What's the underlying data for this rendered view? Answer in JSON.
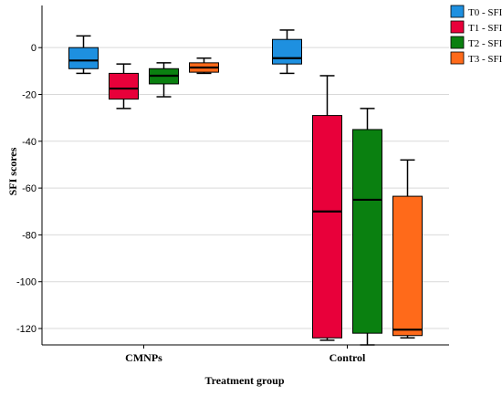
{
  "chart_data": {
    "type": "boxplot",
    "xlabel": "Treatment group",
    "ylabel": "SFI scores",
    "ylim": [
      -127,
      18
    ],
    "yticks": [
      0,
      -20,
      -40,
      -60,
      -80,
      -100,
      -120
    ],
    "grid": "horizontal",
    "legend_position": "top-right",
    "categories": [
      "CMNPs",
      "Control"
    ],
    "series": [
      {
        "name": "T0 - SFI",
        "color": "#1e90e0",
        "boxes": [
          {
            "whisker_low": -11,
            "q1": -9,
            "median": -5.5,
            "q3": 0,
            "whisker_high": 5
          },
          {
            "whisker_low": -11,
            "q1": -7,
            "median": -4.5,
            "q3": 3.5,
            "whisker_high": 7.5
          }
        ]
      },
      {
        "name": "T1 - SFI",
        "color": "#e8003a",
        "boxes": [
          {
            "whisker_low": -26,
            "q1": -22,
            "median": -17.5,
            "q3": -11,
            "whisker_high": -7
          },
          {
            "whisker_low": -125,
            "q1": -124,
            "median": -70,
            "q3": -29,
            "whisker_high": -12
          }
        ]
      },
      {
        "name": "T2 - SFI",
        "color": "#0a8010",
        "boxes": [
          {
            "whisker_low": -21,
            "q1": -15.5,
            "median": -12,
            "q3": -9,
            "whisker_high": -6.5
          },
          {
            "whisker_low": -127,
            "q1": -122,
            "median": -65,
            "q3": -35,
            "whisker_high": -26
          }
        ]
      },
      {
        "name": "T3 - SFI",
        "color": "#ff6a1a",
        "boxes": [
          {
            "whisker_low": -11,
            "q1": -10.5,
            "median": -8.5,
            "q3": -6.5,
            "whisker_high": -4.5
          },
          {
            "whisker_low": -124,
            "q1": -123,
            "median": -120.5,
            "q3": -63.5,
            "whisker_high": -48
          }
        ]
      }
    ]
  }
}
